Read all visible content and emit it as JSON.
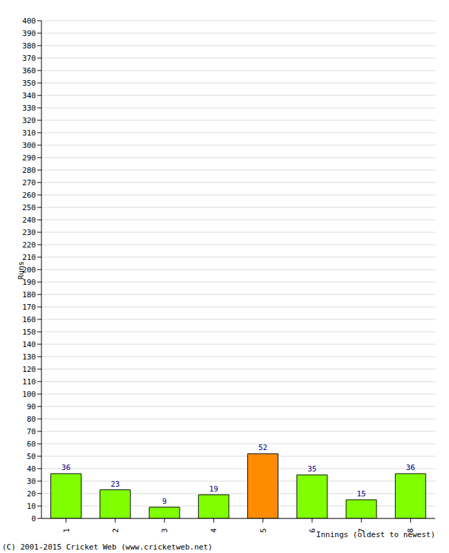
{
  "chart_data": {
    "type": "bar",
    "categories": [
      "1",
      "2",
      "3",
      "4",
      "5",
      "6",
      "7",
      "8"
    ],
    "values": [
      36,
      23,
      9,
      19,
      52,
      35,
      15,
      36
    ],
    "colors": [
      "#80ff00",
      "#80ff00",
      "#80ff00",
      "#80ff00",
      "#ff8c00",
      "#80ff00",
      "#80ff00",
      "#80ff00"
    ],
    "x_label": "Innings (oldest to newest)",
    "y_label": "Runs",
    "annotations": [
      "(C) 2001-2015 Cricket Web (www.cricketweb.net)"
    ],
    "ylim": [
      0,
      400
    ],
    "yticks": [
      0,
      10,
      20,
      30,
      40,
      50,
      60,
      70,
      80,
      90,
      100,
      110,
      120,
      130,
      140,
      150,
      160,
      170,
      180,
      190,
      200,
      210,
      220,
      230,
      240,
      250,
      260,
      270,
      280,
      290,
      300,
      310,
      320,
      330,
      340,
      350,
      360,
      370,
      380,
      390,
      400
    ],
    "grid": true,
    "data_labels": true
  }
}
